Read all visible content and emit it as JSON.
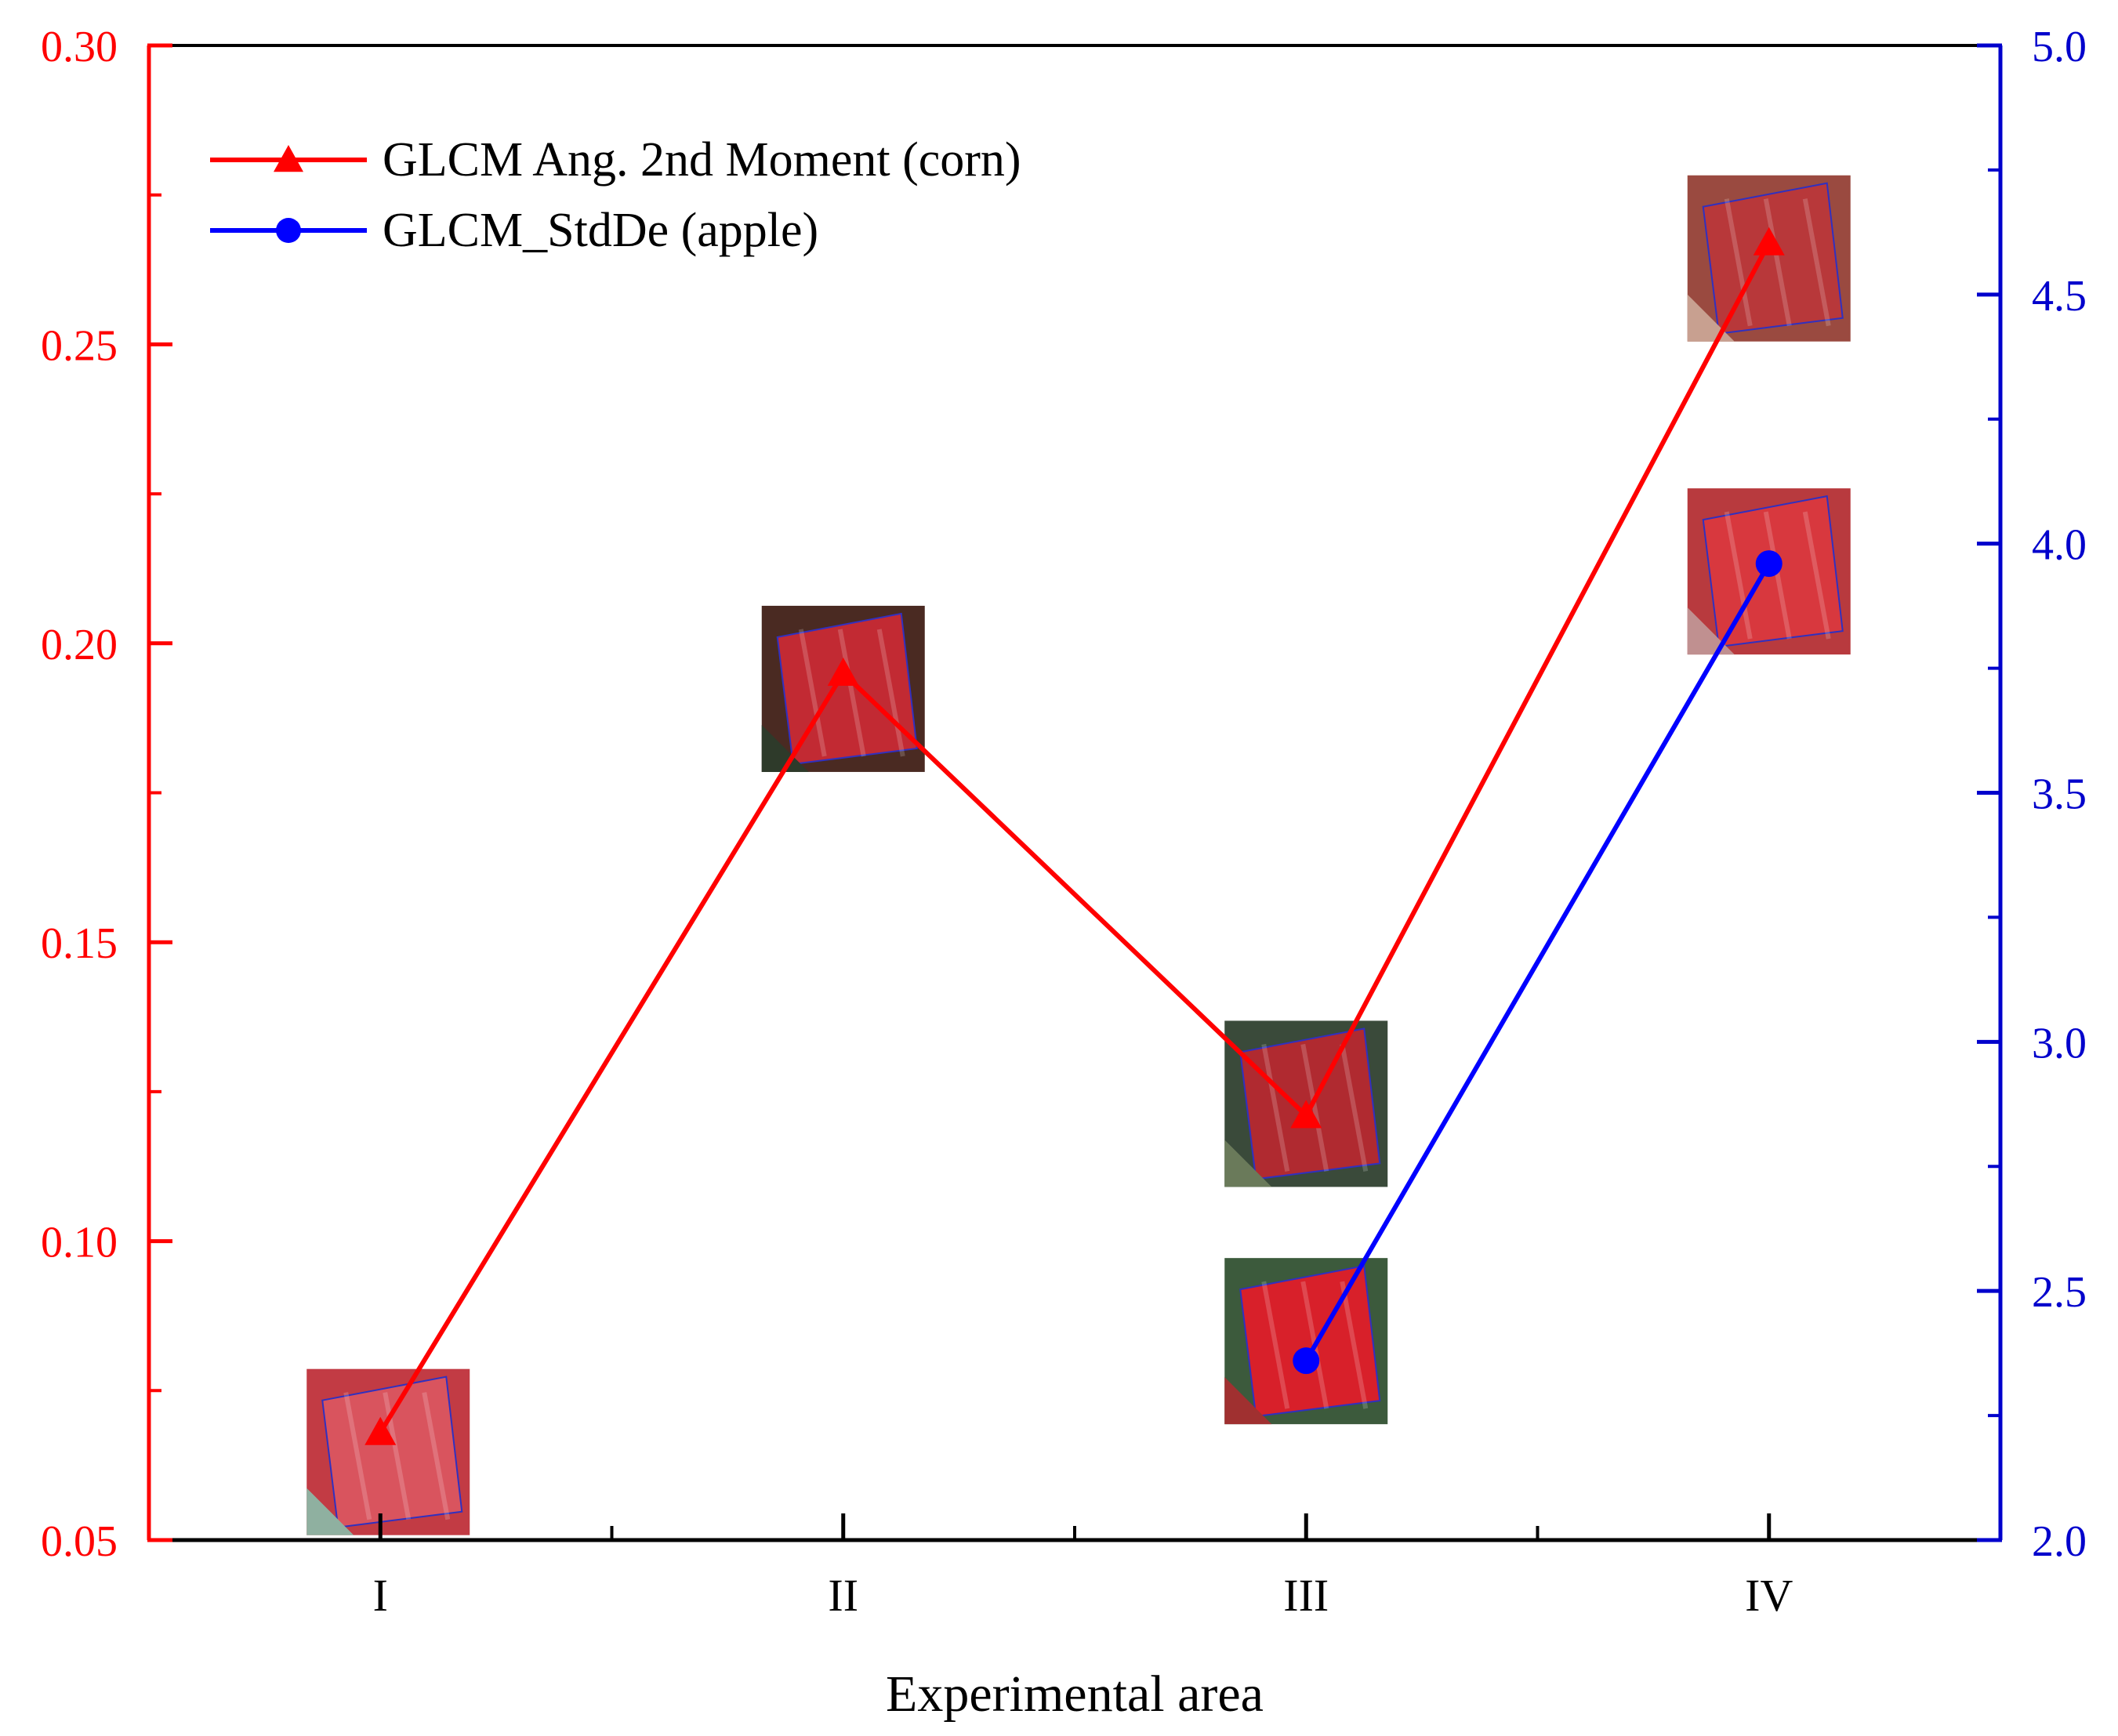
{
  "chart_data": {
    "type": "line",
    "categories": [
      "I",
      "II",
      "III",
      "IV"
    ],
    "xlabel": "Experimental area",
    "y_left": {
      "ylim": [
        0.05,
        0.3
      ],
      "ticks": [
        "0.05",
        "0.10",
        "0.15",
        "0.20",
        "0.25",
        "0.30"
      ],
      "color": "#ff0000"
    },
    "y_right": {
      "ylim": [
        2.0,
        5.0
      ],
      "ticks": [
        "2.0",
        "2.5",
        "3.0",
        "3.5",
        "4.0",
        "4.5",
        "5.0"
      ],
      "color": "#0000cc"
    },
    "grid": false,
    "legend_position": "top-left",
    "series": [
      {
        "name": "GLCM Ang. 2nd Moment (corn)",
        "axis": "left",
        "color": "#ff0000",
        "marker": "triangle",
        "x": [
          "I",
          "II",
          "III",
          "IV"
        ],
        "values": [
          0.068,
          0.195,
          0.121,
          0.267
        ]
      },
      {
        "name": "GLCM_StdDe (apple)",
        "axis": "right",
        "color": "#0000ff",
        "marker": "circle",
        "x": [
          "III",
          "IV"
        ],
        "values": [
          2.36,
          3.96
        ]
      }
    ],
    "thumbnails": [
      {
        "category": "I",
        "series": "GLCM Ang. 2nd Moment (corn)",
        "value": 0.068,
        "palette": [
          "#d9545e",
          "#c23b44",
          "#8fb0a0"
        ]
      },
      {
        "category": "II",
        "series": "GLCM Ang. 2nd Moment (corn)",
        "value": 0.195,
        "palette": [
          "#c22a33",
          "#4a2a22",
          "#2e3a2a"
        ]
      },
      {
        "category": "III",
        "series": "GLCM Ang. 2nd Moment (corn)",
        "value": 0.121,
        "palette": [
          "#b02a30",
          "#3a4a3a",
          "#6a7a5a"
        ]
      },
      {
        "category": "III",
        "series": "GLCM_StdDe (apple)",
        "value": 2.36,
        "palette": [
          "#d8202a",
          "#3c5a3c",
          "#a03030"
        ]
      },
      {
        "category": "IV",
        "series": "GLCM Ang. 2nd Moment (corn)",
        "value": 0.267,
        "palette": [
          "#b8383a",
          "#9a4a40",
          "#c8a090"
        ]
      },
      {
        "category": "IV",
        "series": "GLCM_StdDe (apple)",
        "value": 3.96,
        "palette": [
          "#d8383e",
          "#b83a3e",
          "#c09090"
        ]
      }
    ]
  }
}
